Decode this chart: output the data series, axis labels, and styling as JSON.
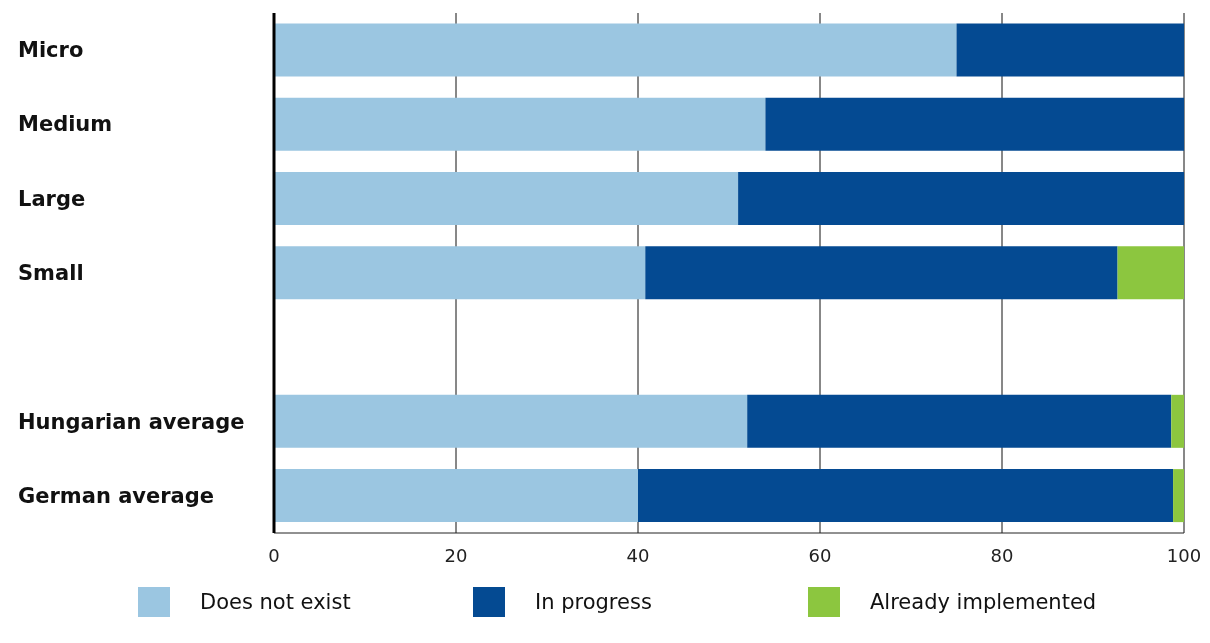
{
  "chart_data": {
    "type": "bar",
    "orientation": "horizontal",
    "stacked": true,
    "categories": [
      "Micro",
      "Medium",
      "Large",
      "Small",
      null,
      "Hungarian average",
      "German average"
    ],
    "series": [
      {
        "name": "Does not exist",
        "color": "#9bc6e1",
        "values": [
          75,
          54,
          51,
          40.8,
          null,
          52,
          40
        ]
      },
      {
        "name": "In progress",
        "color": "#044a92",
        "values": [
          25,
          46,
          49,
          51.9,
          null,
          46.6,
          58.8
        ]
      },
      {
        "name": "Already implemented",
        "color": "#8cc63f",
        "values": [
          0,
          0,
          0,
          7.3,
          null,
          1.4,
          1.2
        ]
      }
    ],
    "xlim": [
      0,
      100
    ],
    "xticks": [
      0,
      20,
      40,
      60,
      80,
      100
    ],
    "grid": "x",
    "legend": "bottom"
  }
}
